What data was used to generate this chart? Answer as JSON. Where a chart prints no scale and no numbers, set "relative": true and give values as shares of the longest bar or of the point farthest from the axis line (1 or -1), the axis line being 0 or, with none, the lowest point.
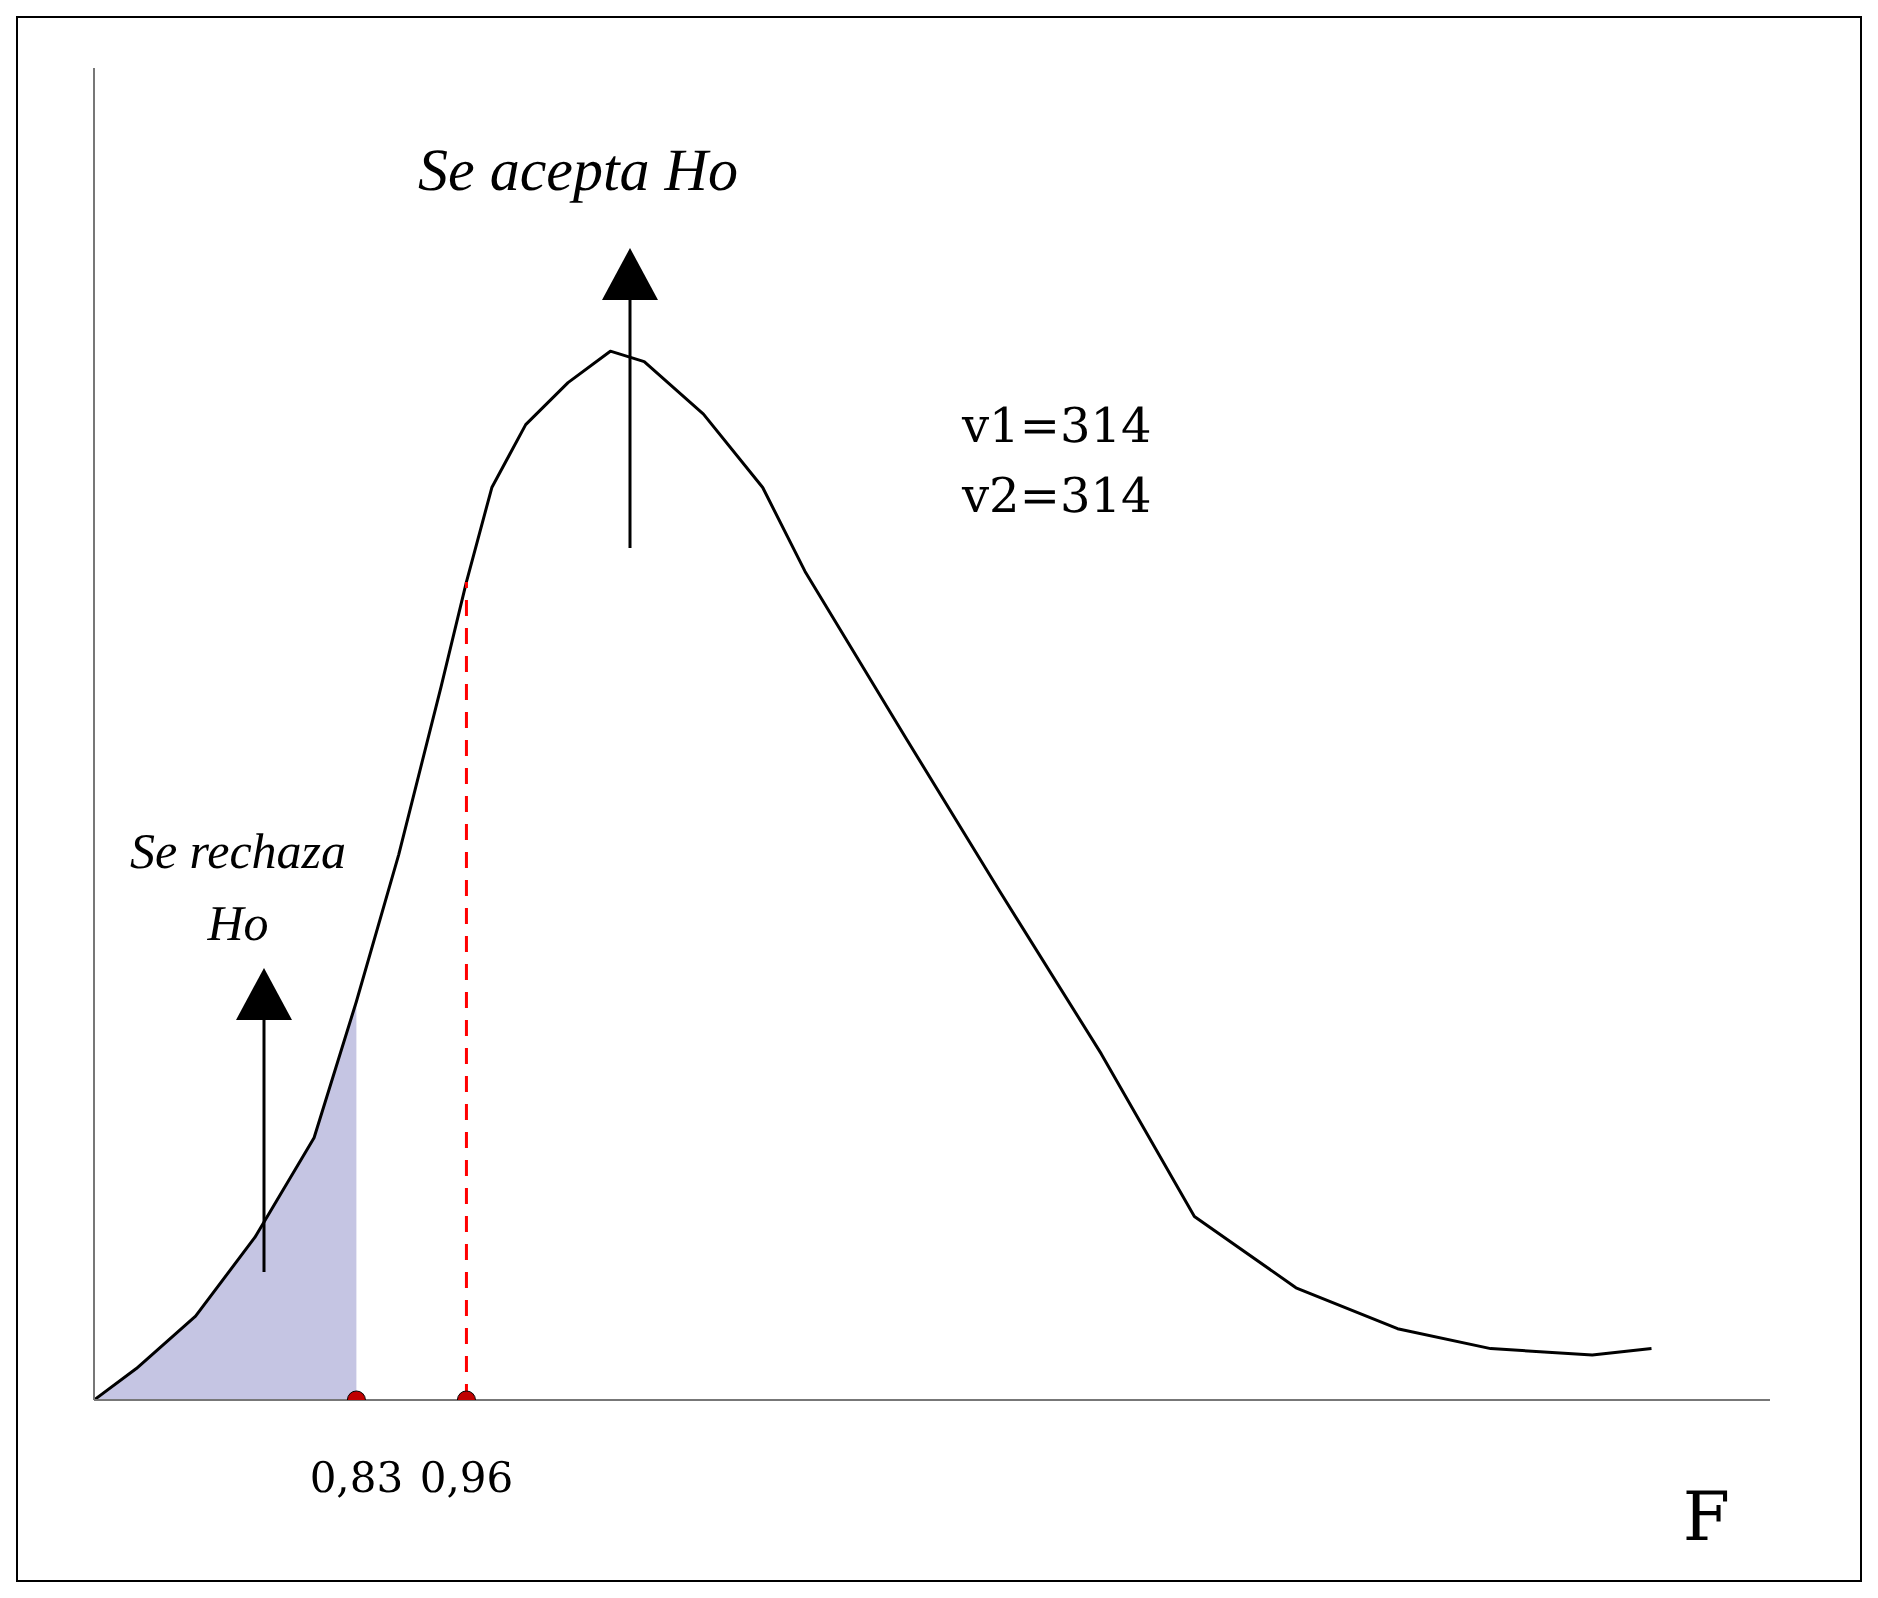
{
  "chart_data": {
    "type": "line",
    "relative": true,
    "xlabel": "F",
    "xlim": [
      0.52,
      2.5
    ],
    "xticks": [
      {
        "value": 0.83,
        "label": "0,83"
      },
      {
        "value": 0.96,
        "label": "0,96"
      }
    ],
    "grid": false,
    "legend": false,
    "annotations": [
      "Se acepta Ho",
      "Se rechaza Ho",
      "v1=314",
      "v2=314"
    ],
    "series": [
      {
        "type": "area",
        "color": "#c5c5e3",
        "x": [
          0.52,
          0.57,
          0.64,
          0.71,
          0.78,
          0.83
        ],
        "values": [
          0,
          0.03,
          0.08,
          0.155,
          0.25,
          0.38
        ]
      },
      {
        "color": "#000000",
        "x": [
          0.52,
          0.57,
          0.64,
          0.71,
          0.78,
          0.83,
          0.88,
          0.93,
          0.96,
          0.99,
          1.03,
          1.08,
          1.13,
          1.17,
          1.24,
          1.31,
          1.36,
          1.48,
          1.59,
          1.71,
          1.82,
          1.94,
          2.06,
          2.17,
          2.29,
          2.36
        ],
        "values": [
          0,
          0.03,
          0.08,
          0.155,
          0.25,
          0.38,
          0.52,
          0.68,
          0.78,
          0.87,
          0.93,
          0.97,
          1,
          0.99,
          0.94,
          0.87,
          0.79,
          0.63,
          0.485,
          0.33,
          0.175,
          0.107,
          0.068,
          0.049,
          0.043,
          0.049
        ]
      },
      {
        "type": "line",
        "color": "#ff0000",
        "line_style": "dashed",
        "x": [
          0.96,
          0.96
        ],
        "values": [
          0,
          0.78
        ]
      },
      {
        "type": "scatter",
        "color": "#c00000",
        "marker": "circle",
        "x": [
          0.83,
          0.96
        ],
        "values": [
          0,
          0
        ]
      }
    ]
  }
}
